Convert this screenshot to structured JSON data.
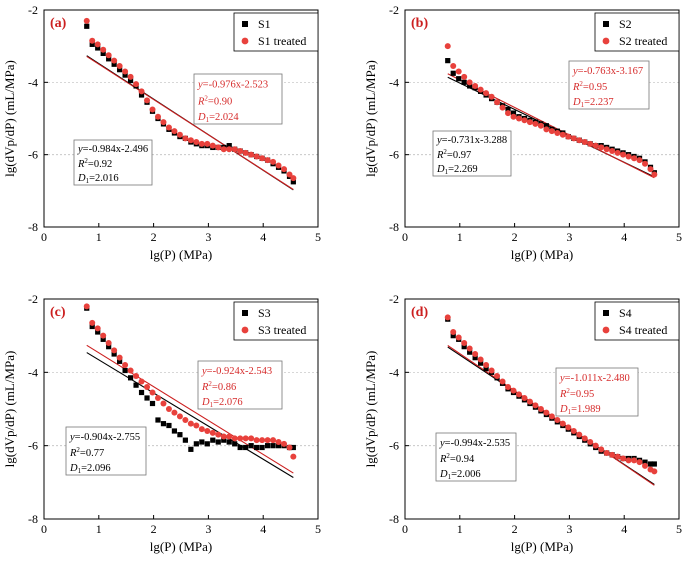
{
  "colors": {
    "untreated": "#000000",
    "treated": "#e8413c",
    "fit_treated": "#cc1f1f",
    "annot_treated": "#d62c2c",
    "grid": "#bfbfbf"
  },
  "chart_data": [
    {
      "type": "scatter",
      "panel_label": "(a)",
      "xlabel": "lg(P) (MPa)",
      "ylabel": "lg(dVp/dP) (mL/MPa)",
      "xlim": [
        0,
        5
      ],
      "ylim": [
        -8,
        -2
      ],
      "xticks": [
        0,
        1,
        2,
        3,
        4,
        5
      ],
      "yticks": [
        -8,
        -6,
        -4,
        -2
      ],
      "xtick_labels": [
        "0",
        "1",
        "2",
        "3",
        "4",
        "5"
      ],
      "ytick_labels": [
        "-8",
        "-6",
        "-4",
        "-2"
      ],
      "legend": [
        "S1",
        "S1 treated"
      ],
      "series": [
        {
          "name": "S1",
          "marker": "square",
          "x": [
            0.78,
            0.88,
            0.98,
            1.08,
            1.18,
            1.28,
            1.38,
            1.48,
            1.58,
            1.68,
            1.78,
            1.88,
            1.98,
            2.08,
            2.18,
            2.28,
            2.38,
            2.48,
            2.58,
            2.68,
            2.78,
            2.88,
            2.98,
            3.08,
            3.18,
            3.28,
            3.38,
            3.48,
            3.58,
            3.68,
            3.78,
            3.88,
            3.98,
            4.08,
            4.18,
            4.28,
            4.38,
            4.48,
            4.55
          ],
          "y": [
            -2.45,
            -2.95,
            -3.05,
            -3.2,
            -3.35,
            -3.5,
            -3.65,
            -3.8,
            -3.95,
            -4.1,
            -4.35,
            -4.55,
            -4.8,
            -5.0,
            -5.15,
            -5.3,
            -5.4,
            -5.5,
            -5.55,
            -5.65,
            -5.7,
            -5.75,
            -5.75,
            -5.8,
            -5.8,
            -5.8,
            -5.75,
            -5.85,
            -5.9,
            -5.95,
            -6.0,
            -6.05,
            -6.1,
            -6.15,
            -6.25,
            -6.35,
            -6.45,
            -6.6,
            -6.75
          ]
        },
        {
          "name": "S1 treated",
          "marker": "circle",
          "x": [
            0.78,
            0.88,
            0.98,
            1.08,
            1.18,
            1.28,
            1.38,
            1.48,
            1.58,
            1.68,
            1.78,
            1.88,
            1.98,
            2.08,
            2.18,
            2.28,
            2.38,
            2.48,
            2.58,
            2.68,
            2.78,
            2.88,
            2.98,
            3.08,
            3.18,
            3.28,
            3.38,
            3.48,
            3.58,
            3.68,
            3.78,
            3.88,
            3.98,
            4.08,
            4.18,
            4.28,
            4.38,
            4.48,
            4.55
          ],
          "y": [
            -2.3,
            -2.85,
            -2.95,
            -3.1,
            -3.25,
            -3.4,
            -3.55,
            -3.7,
            -3.85,
            -4.05,
            -4.25,
            -4.5,
            -4.75,
            -4.95,
            -5.1,
            -5.25,
            -5.35,
            -5.45,
            -5.55,
            -5.6,
            -5.65,
            -5.7,
            -5.7,
            -5.75,
            -5.8,
            -5.85,
            -5.85,
            -5.85,
            -5.9,
            -5.95,
            -6.0,
            -6.05,
            -6.1,
            -6.15,
            -6.2,
            -6.3,
            -6.4,
            -6.55,
            -6.65
          ]
        }
      ],
      "fits": [
        {
          "name": "S1 fit",
          "slope": -0.984,
          "intercept": -2.496,
          "color": "untreated"
        },
        {
          "name": "S1 treated fit",
          "slope": -0.976,
          "intercept": -2.523,
          "color": "fit_treated"
        }
      ],
      "annot_untreated": {
        "eq_pre": "y",
        "eq_post": "=-0.984x-2.496",
        "r2_post": "=0.92",
        "d_post": "=2.016"
      },
      "annot_treated": {
        "eq_pre": "y",
        "eq_post": "=-0.976x-2.523",
        "r2_post": "=0.90",
        "d_post": "=2.024"
      }
    },
    {
      "type": "scatter",
      "panel_label": "(b)",
      "xlabel": "lg(P) (MPa)",
      "ylabel": "lg(dVp/dP) (mL/MPa)",
      "xlim": [
        0,
        5
      ],
      "ylim": [
        -8,
        -2
      ],
      "xticks": [
        0,
        1,
        2,
        3,
        4,
        5
      ],
      "yticks": [
        -8,
        -6,
        -4,
        -2
      ],
      "xtick_labels": [
        "0",
        "1",
        "2",
        "3",
        "4",
        "5"
      ],
      "ytick_labels": [
        "-8",
        "-6",
        "-4",
        "-2"
      ],
      "legend": [
        "S2",
        "S2 treated"
      ],
      "series": [
        {
          "name": "S2",
          "marker": "square",
          "x": [
            0.78,
            0.88,
            0.98,
            1.08,
            1.18,
            1.28,
            1.38,
            1.48,
            1.58,
            1.68,
            1.78,
            1.88,
            1.98,
            2.08,
            2.18,
            2.28,
            2.38,
            2.48,
            2.58,
            2.68,
            2.78,
            2.88,
            2.98,
            3.08,
            3.18,
            3.28,
            3.38,
            3.48,
            3.58,
            3.68,
            3.78,
            3.88,
            3.98,
            4.08,
            4.18,
            4.28,
            4.38,
            4.48,
            4.55
          ],
          "y": [
            -3.4,
            -3.75,
            -3.9,
            -4.0,
            -4.1,
            -4.15,
            -4.25,
            -4.35,
            -4.45,
            -4.55,
            -4.65,
            -4.75,
            -4.85,
            -4.95,
            -5.0,
            -5.05,
            -5.1,
            -5.15,
            -5.2,
            -5.3,
            -5.35,
            -5.4,
            -5.5,
            -5.55,
            -5.6,
            -5.65,
            -5.7,
            -5.75,
            -5.75,
            -5.8,
            -5.85,
            -5.9,
            -5.95,
            -6.0,
            -6.05,
            -6.1,
            -6.2,
            -6.35,
            -6.5
          ]
        },
        {
          "name": "S2 treated",
          "marker": "circle",
          "x": [
            0.78,
            0.88,
            0.98,
            1.08,
            1.18,
            1.28,
            1.38,
            1.48,
            1.58,
            1.68,
            1.78,
            1.88,
            1.98,
            2.08,
            2.18,
            2.28,
            2.38,
            2.48,
            2.58,
            2.68,
            2.78,
            2.88,
            2.98,
            3.08,
            3.18,
            3.28,
            3.38,
            3.48,
            3.58,
            3.68,
            3.78,
            3.88,
            3.98,
            4.08,
            4.18,
            4.28,
            4.38,
            4.48,
            4.55
          ],
          "y": [
            -3.0,
            -3.55,
            -3.7,
            -3.85,
            -4.0,
            -4.1,
            -4.2,
            -4.3,
            -4.4,
            -4.55,
            -4.7,
            -4.85,
            -4.95,
            -5.0,
            -5.05,
            -5.1,
            -5.15,
            -5.2,
            -5.3,
            -5.35,
            -5.4,
            -5.45,
            -5.5,
            -5.55,
            -5.6,
            -5.65,
            -5.7,
            -5.75,
            -5.8,
            -5.85,
            -5.9,
            -5.95,
            -6.0,
            -6.05,
            -6.1,
            -6.15,
            -6.25,
            -6.4,
            -6.55
          ]
        }
      ],
      "fits": [
        {
          "name": "S2 fit",
          "slope": -0.731,
          "intercept": -3.288,
          "color": "untreated"
        },
        {
          "name": "S2 treated fit",
          "slope": -0.763,
          "intercept": -3.167,
          "color": "fit_treated"
        }
      ],
      "annot_untreated": {
        "eq_pre": "y",
        "eq_post": "=-0.731x-3.288",
        "r2_post": "=0.97",
        "d_post": "=2.269"
      },
      "annot_treated": {
        "eq_pre": "y",
        "eq_post": "=-0.763x-3.167",
        "r2_post": "=0.95",
        "d_post": "=2.237"
      }
    },
    {
      "type": "scatter",
      "panel_label": "(c)",
      "xlabel": "lg(P) (MPa)",
      "ylabel": "lg(dVp/dP) (mL/MPa)",
      "xlim": [
        0,
        5
      ],
      "ylim": [
        -8,
        -2
      ],
      "xticks": [
        0,
        1,
        2,
        3,
        4,
        5
      ],
      "yticks": [
        -8,
        -6,
        -4,
        -2
      ],
      "xtick_labels": [
        "0",
        "1",
        "2",
        "3",
        "4",
        "5"
      ],
      "ytick_labels": [
        "-8",
        "-6",
        "-4",
        "-2"
      ],
      "legend": [
        "S3",
        "S3 treated"
      ],
      "series": [
        {
          "name": "S3",
          "marker": "square",
          "x": [
            0.78,
            0.88,
            0.98,
            1.08,
            1.18,
            1.28,
            1.38,
            1.48,
            1.58,
            1.68,
            1.78,
            1.88,
            1.98,
            2.08,
            2.18,
            2.28,
            2.38,
            2.48,
            2.58,
            2.68,
            2.78,
            2.88,
            2.98,
            3.08,
            3.18,
            3.28,
            3.38,
            3.48,
            3.58,
            3.68,
            3.78,
            3.88,
            3.98,
            4.08,
            4.18,
            4.28,
            4.38,
            4.48,
            4.55
          ],
          "y": [
            -2.25,
            -2.75,
            -2.9,
            -3.1,
            -3.3,
            -3.5,
            -3.7,
            -3.95,
            -4.15,
            -4.35,
            -4.55,
            -4.7,
            -4.85,
            -5.3,
            -5.4,
            -5.45,
            -5.6,
            -5.7,
            -5.85,
            -6.1,
            -5.95,
            -5.9,
            -5.95,
            -5.85,
            -5.9,
            -5.85,
            -5.9,
            -5.95,
            -6.05,
            -6.05,
            -6.0,
            -6.05,
            -6.05,
            -6.0,
            -6.0,
            -6.0,
            -6.0,
            -6.05,
            -6.05
          ]
        },
        {
          "name": "S3 treated",
          "marker": "circle",
          "x": [
            0.78,
            0.88,
            0.98,
            1.08,
            1.18,
            1.28,
            1.38,
            1.48,
            1.58,
            1.68,
            1.78,
            1.88,
            1.98,
            2.08,
            2.18,
            2.28,
            2.38,
            2.48,
            2.58,
            2.68,
            2.78,
            2.88,
            2.98,
            3.08,
            3.18,
            3.28,
            3.38,
            3.48,
            3.58,
            3.68,
            3.78,
            3.88,
            3.98,
            4.08,
            4.18,
            4.28,
            4.38,
            4.48,
            4.55
          ],
          "y": [
            -2.2,
            -2.65,
            -2.8,
            -3.0,
            -3.2,
            -3.4,
            -3.6,
            -3.8,
            -3.95,
            -4.1,
            -4.25,
            -4.4,
            -4.55,
            -4.7,
            -4.85,
            -5.0,
            -5.1,
            -5.2,
            -5.3,
            -5.4,
            -5.45,
            -5.55,
            -5.6,
            -5.65,
            -5.7,
            -5.75,
            -5.75,
            -5.8,
            -5.8,
            -5.8,
            -5.8,
            -5.85,
            -5.85,
            -5.85,
            -5.85,
            -5.9,
            -5.95,
            -6.05,
            -6.3
          ]
        }
      ],
      "fits": [
        {
          "name": "S3 fit",
          "slope": -0.904,
          "intercept": -2.755,
          "color": "untreated"
        },
        {
          "name": "S3 treated fit",
          "slope": -0.924,
          "intercept": -2.543,
          "color": "fit_treated"
        }
      ],
      "annot_untreated": {
        "eq_pre": "y",
        "eq_post": "=-0.904x-2.755",
        "r2_post": "=0.77",
        "d_post": "=2.096"
      },
      "annot_treated": {
        "eq_pre": "y",
        "eq_post": "=-0.924x-2.543",
        "r2_post": "=0.86",
        "d_post": "=2.076"
      }
    },
    {
      "type": "scatter",
      "panel_label": "(d)",
      "xlabel": "lg(P) (MPa)",
      "ylabel": "lg(dVp/dP) (mL/MPa)",
      "xlim": [
        0,
        5
      ],
      "ylim": [
        -8,
        -2
      ],
      "xticks": [
        0,
        1,
        2,
        3,
        4,
        5
      ],
      "yticks": [
        -8,
        -6,
        -4,
        -2
      ],
      "xtick_labels": [
        "0",
        "1",
        "2",
        "3",
        "4",
        "5"
      ],
      "ytick_labels": [
        "-8",
        "-6",
        "-4",
        "-2"
      ],
      "legend": [
        "S4",
        "S4 treated"
      ],
      "series": [
        {
          "name": "S4",
          "marker": "square",
          "x": [
            0.78,
            0.88,
            0.98,
            1.08,
            1.18,
            1.28,
            1.38,
            1.48,
            1.58,
            1.68,
            1.78,
            1.88,
            1.98,
            2.08,
            2.18,
            2.28,
            2.38,
            2.48,
            2.58,
            2.68,
            2.78,
            2.88,
            2.98,
            3.08,
            3.18,
            3.28,
            3.38,
            3.48,
            3.58,
            3.68,
            3.78,
            3.88,
            3.98,
            4.08,
            4.18,
            4.28,
            4.38,
            4.48,
            4.55
          ],
          "y": [
            -2.55,
            -3.0,
            -3.1,
            -3.3,
            -3.45,
            -3.6,
            -3.75,
            -3.9,
            -4.0,
            -4.15,
            -4.3,
            -4.45,
            -4.55,
            -4.65,
            -4.75,
            -4.85,
            -4.95,
            -5.05,
            -5.15,
            -5.25,
            -5.35,
            -5.45,
            -5.55,
            -5.65,
            -5.75,
            -5.85,
            -5.95,
            -6.05,
            -6.15,
            -6.2,
            -6.25,
            -6.3,
            -6.35,
            -6.35,
            -6.35,
            -6.4,
            -6.45,
            -6.5,
            -6.5
          ]
        },
        {
          "name": "S4 treated",
          "marker": "circle",
          "x": [
            0.78,
            0.88,
            0.98,
            1.08,
            1.18,
            1.28,
            1.38,
            1.48,
            1.58,
            1.68,
            1.78,
            1.88,
            1.98,
            2.08,
            2.18,
            2.28,
            2.38,
            2.48,
            2.58,
            2.68,
            2.78,
            2.88,
            2.98,
            3.08,
            3.18,
            3.28,
            3.38,
            3.48,
            3.58,
            3.68,
            3.78,
            3.88,
            3.98,
            4.08,
            4.18,
            4.28,
            4.38,
            4.48,
            4.55
          ],
          "y": [
            -2.5,
            -2.9,
            -3.05,
            -3.2,
            -3.35,
            -3.5,
            -3.65,
            -3.8,
            -3.95,
            -4.1,
            -4.25,
            -4.4,
            -4.5,
            -4.6,
            -4.7,
            -4.8,
            -4.9,
            -5.0,
            -5.1,
            -5.2,
            -5.3,
            -5.4,
            -5.5,
            -5.6,
            -5.7,
            -5.8,
            -5.9,
            -6.0,
            -6.1,
            -6.2,
            -6.25,
            -6.3,
            -6.35,
            -6.4,
            -6.4,
            -6.45,
            -6.55,
            -6.65,
            -6.7
          ]
        }
      ],
      "fits": [
        {
          "name": "S4 fit",
          "slope": -0.994,
          "intercept": -2.535,
          "color": "untreated"
        },
        {
          "name": "S4 treated fit",
          "slope": -1.011,
          "intercept": -2.48,
          "color": "fit_treated"
        }
      ],
      "annot_untreated": {
        "eq_pre": "y",
        "eq_post": "=-0.994x-2.535",
        "r2_post": "=0.94",
        "d_post": "=2.006"
      },
      "annot_treated": {
        "eq_pre": "y",
        "eq_post": "=-1.011x-2.480",
        "r2_post": "=0.95",
        "d_post": "=1.989"
      }
    }
  ]
}
